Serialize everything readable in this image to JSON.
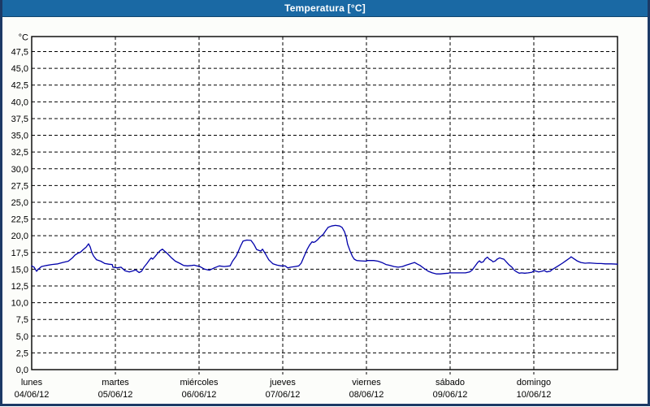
{
  "window": {
    "title": "Temperatura [°C]"
  },
  "colors": {
    "titlebar_bg": "#1a69a4",
    "window_border": "#1c3a66",
    "content_bg": "#fcfdfa",
    "plot_bg": "#ffffff",
    "plot_border": "#000000",
    "grid": "#000000",
    "text": "#000000",
    "line": "#0000aa"
  },
  "chart_data": {
    "type": "line",
    "title": "Temperatura [°C]",
    "y_unit_label": "°C",
    "ylim": [
      0,
      49.75
    ],
    "grid": "dashed",
    "legend": "none",
    "y_ticks": [
      {
        "v": 47.5,
        "label": "47,5"
      },
      {
        "v": 45.0,
        "label": "45,0"
      },
      {
        "v": 42.5,
        "label": "42,5"
      },
      {
        "v": 40.0,
        "label": "40,0"
      },
      {
        "v": 37.5,
        "label": "37,5"
      },
      {
        "v": 35.0,
        "label": "35,0"
      },
      {
        "v": 32.5,
        "label": "32,5"
      },
      {
        "v": 30.0,
        "label": "30,0"
      },
      {
        "v": 27.5,
        "label": "27,5"
      },
      {
        "v": 25.0,
        "label": "25,0"
      },
      {
        "v": 22.5,
        "label": "22,5"
      },
      {
        "v": 20.0,
        "label": "20,0"
      },
      {
        "v": 17.5,
        "label": "17,5"
      },
      {
        "v": 15.0,
        "label": "15,0"
      },
      {
        "v": 12.5,
        "label": "12,5"
      },
      {
        "v": 10.0,
        "label": "10,0"
      },
      {
        "v": 7.5,
        "label": "7,5"
      },
      {
        "v": 5.0,
        "label": "5,0"
      },
      {
        "v": 2.5,
        "label": "2,5"
      },
      {
        "v": 0.0,
        "label": "0,0"
      }
    ],
    "x_days": [
      {
        "name": "lunes",
        "date": "04/06/12",
        "start_hour": 0
      },
      {
        "name": "martes",
        "date": "05/06/12",
        "start_hour": 24
      },
      {
        "name": "miércoles",
        "date": "06/06/12",
        "start_hour": 48
      },
      {
        "name": "jueves",
        "date": "07/06/12",
        "start_hour": 72
      },
      {
        "name": "viernes",
        "date": "08/06/12",
        "start_hour": 96
      },
      {
        "name": "sábado",
        "date": "09/06/12",
        "start_hour": 120
      },
      {
        "name": "domingo",
        "date": "10/06/12",
        "start_hour": 144
      }
    ],
    "x_range_hours": [
      0,
      168
    ],
    "series": [
      {
        "name": "Temperatura",
        "color": "#0000aa",
        "points": [
          [
            0,
            15.5
          ],
          [
            0.7,
            15.3
          ],
          [
            1.4,
            14.7
          ],
          [
            1.9,
            15.0
          ],
          [
            2.8,
            15.4
          ],
          [
            4.2,
            15.55
          ],
          [
            5.8,
            15.7
          ],
          [
            7.5,
            15.8
          ],
          [
            8.9,
            16.0
          ],
          [
            10.5,
            16.2
          ],
          [
            11.7,
            16.7
          ],
          [
            12.4,
            17.1
          ],
          [
            13.3,
            17.4
          ],
          [
            14,
            17.55
          ],
          [
            14.7,
            17.9
          ],
          [
            15.6,
            18.3
          ],
          [
            16.3,
            18.8
          ],
          [
            16.8,
            18.3
          ],
          [
            17.2,
            17.6
          ],
          [
            17.7,
            17.0
          ],
          [
            18.6,
            16.4
          ],
          [
            19.8,
            16.2
          ],
          [
            21,
            15.85
          ],
          [
            22.1,
            15.75
          ],
          [
            23.1,
            15.7
          ],
          [
            23.3,
            15.3
          ],
          [
            24.5,
            15.2
          ],
          [
            25.6,
            15.3
          ],
          [
            26.8,
            14.75
          ],
          [
            28,
            14.6
          ],
          [
            29.1,
            14.75
          ],
          [
            29.8,
            14.9
          ],
          [
            30.8,
            14.5
          ],
          [
            31.5,
            14.7
          ],
          [
            32.2,
            15.3
          ],
          [
            33.1,
            15.9
          ],
          [
            33.8,
            16.4
          ],
          [
            34.3,
            16.7
          ],
          [
            34.7,
            16.5
          ],
          [
            35.4,
            16.9
          ],
          [
            36.1,
            17.35
          ],
          [
            36.8,
            17.75
          ],
          [
            37.5,
            18.0
          ],
          [
            38,
            17.75
          ],
          [
            38.9,
            17.35
          ],
          [
            40.1,
            16.7
          ],
          [
            41.2,
            16.2
          ],
          [
            42.4,
            15.9
          ],
          [
            43.6,
            15.55
          ],
          [
            44.7,
            15.5
          ],
          [
            45.9,
            15.55
          ],
          [
            46.6,
            15.6
          ],
          [
            47.3,
            15.5
          ],
          [
            48,
            15.45
          ],
          [
            48.2,
            15.4
          ],
          [
            49.6,
            15.0
          ],
          [
            51,
            14.85
          ],
          [
            52.4,
            15.2
          ],
          [
            53.8,
            15.5
          ],
          [
            55.2,
            15.4
          ],
          [
            56.9,
            15.5
          ],
          [
            57.6,
            16.2
          ],
          [
            58.7,
            17.0
          ],
          [
            59.9,
            18.45
          ],
          [
            60.6,
            19.2
          ],
          [
            61.7,
            19.35
          ],
          [
            62.9,
            19.3
          ],
          [
            63.8,
            18.65
          ],
          [
            64.5,
            17.95
          ],
          [
            65.7,
            17.7
          ],
          [
            66.2,
            18.0
          ],
          [
            66.9,
            17.4
          ],
          [
            68,
            16.4
          ],
          [
            69.2,
            15.8
          ],
          [
            70.4,
            15.6
          ],
          [
            71.5,
            15.5
          ],
          [
            72.7,
            15.5
          ],
          [
            73.4,
            15.2
          ],
          [
            74.3,
            15.3
          ],
          [
            75.5,
            15.4
          ],
          [
            76.6,
            15.5
          ],
          [
            77.3,
            15.9
          ],
          [
            78.1,
            16.9
          ],
          [
            79,
            17.95
          ],
          [
            79.7,
            18.6
          ],
          [
            80.4,
            19.1
          ],
          [
            80.8,
            19.0
          ],
          [
            81.3,
            19.1
          ],
          [
            82,
            19.4
          ],
          [
            82.7,
            19.8
          ],
          [
            83.6,
            20.2
          ],
          [
            84.3,
            20.75
          ],
          [
            85,
            21.25
          ],
          [
            86,
            21.45
          ],
          [
            87.1,
            21.55
          ],
          [
            88.3,
            21.45
          ],
          [
            89,
            21.25
          ],
          [
            89.7,
            20.6
          ],
          [
            90.2,
            19.8
          ],
          [
            90.6,
            18.75
          ],
          [
            91.3,
            17.75
          ],
          [
            92,
            16.9
          ],
          [
            92.5,
            16.5
          ],
          [
            93.2,
            16.3
          ],
          [
            94.4,
            16.25
          ],
          [
            96,
            16.2
          ],
          [
            96.2,
            16.3
          ],
          [
            97.4,
            16.3
          ],
          [
            98.1,
            16.3
          ],
          [
            99.3,
            16.2
          ],
          [
            100.4,
            16.0
          ],
          [
            101.6,
            15.7
          ],
          [
            102.8,
            15.55
          ],
          [
            103.9,
            15.4
          ],
          [
            105.1,
            15.3
          ],
          [
            106.3,
            15.4
          ],
          [
            107.4,
            15.6
          ],
          [
            108.6,
            15.8
          ],
          [
            109.8,
            16.0
          ],
          [
            110.5,
            15.8
          ],
          [
            111.4,
            15.55
          ],
          [
            112.6,
            15.1
          ],
          [
            113.7,
            14.7
          ],
          [
            114.9,
            14.45
          ],
          [
            116.1,
            14.3
          ],
          [
            117.2,
            14.3
          ],
          [
            118.4,
            14.35
          ],
          [
            119.5,
            14.4
          ],
          [
            119.8,
            14.45
          ],
          [
            121.4,
            14.45
          ],
          [
            122.8,
            14.45
          ],
          [
            124.4,
            14.45
          ],
          [
            125.6,
            14.6
          ],
          [
            126.3,
            14.85
          ],
          [
            127.2,
            15.5
          ],
          [
            127.9,
            16.0
          ],
          [
            128.4,
            16.25
          ],
          [
            128.9,
            16.0
          ],
          [
            129.5,
            16.1
          ],
          [
            130,
            16.5
          ],
          [
            130.7,
            16.8
          ],
          [
            131.2,
            16.5
          ],
          [
            131.9,
            16.3
          ],
          [
            132.3,
            16.1
          ],
          [
            133,
            16.25
          ],
          [
            133.5,
            16.5
          ],
          [
            134.2,
            16.7
          ],
          [
            134.7,
            16.6
          ],
          [
            135.4,
            16.5
          ],
          [
            136.1,
            16.1
          ],
          [
            136.8,
            15.7
          ],
          [
            137.7,
            15.3
          ],
          [
            138.4,
            14.85
          ],
          [
            139.1,
            14.6
          ],
          [
            139.8,
            14.4
          ],
          [
            140.5,
            14.45
          ],
          [
            141.4,
            14.4
          ],
          [
            142.4,
            14.45
          ],
          [
            143.5,
            14.55
          ],
          [
            144,
            14.8
          ],
          [
            144.7,
            14.7
          ],
          [
            145.4,
            14.6
          ],
          [
            146.3,
            14.7
          ],
          [
            147,
            14.8
          ],
          [
            147.7,
            14.6
          ],
          [
            148.7,
            14.7
          ],
          [
            149.4,
            15.0
          ],
          [
            150.1,
            15.2
          ],
          [
            151,
            15.5
          ],
          [
            152.2,
            15.9
          ],
          [
            153.3,
            16.3
          ],
          [
            154.5,
            16.75
          ],
          [
            154.7,
            16.85
          ],
          [
            155.4,
            16.6
          ],
          [
            156.4,
            16.25
          ],
          [
            157.5,
            16.0
          ],
          [
            158.7,
            15.9
          ],
          [
            159.9,
            15.95
          ],
          [
            161,
            15.9
          ],
          [
            162.2,
            15.85
          ],
          [
            163.3,
            15.85
          ],
          [
            164.5,
            15.8
          ],
          [
            166.2,
            15.8
          ],
          [
            168,
            15.75
          ]
        ]
      }
    ]
  }
}
